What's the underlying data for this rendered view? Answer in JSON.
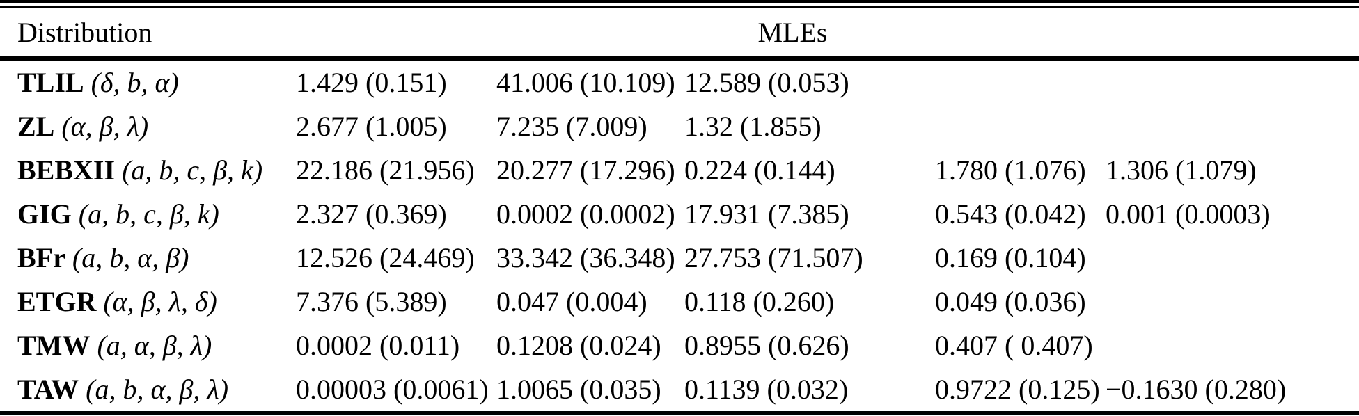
{
  "table": {
    "header": {
      "distribution_label": "Distribution",
      "mles_label": "MLEs"
    },
    "rows": [
      {
        "name": "TLIL",
        "params": "(δ, b, α)",
        "mles": [
          "1.429 (0.151)",
          "41.006 (10.109)",
          "12.589 (0.053)",
          "",
          ""
        ]
      },
      {
        "name": "ZL",
        "params": "(α, β, λ)",
        "mles": [
          "2.677 (1.005)",
          "7.235 (7.009)",
          "1.32 (1.855)",
          "",
          ""
        ]
      },
      {
        "name": "BEBXII",
        "params": "(a, b, c, β, k)",
        "mles": [
          "22.186 (21.956)",
          "20.277 (17.296)",
          "0.224 (0.144)",
          "1.780 (1.076)",
          "1.306 (1.079)"
        ]
      },
      {
        "name": "GIG",
        "params": "(a, b, c, β, k)",
        "mles": [
          "2.327 (0.369)",
          "0.0002 (0.0002)",
          "17.931 (7.385)",
          "0.543 (0.042)",
          "0.001 (0.0003)"
        ]
      },
      {
        "name": "BFr",
        "params": "(a, b, α, β)",
        "mles": [
          "12.526 (24.469)",
          "33.342 (36.348)",
          "27.753 (71.507)",
          "0.169 (0.104)",
          ""
        ]
      },
      {
        "name": "ETGR",
        "params": "(α, β, λ, δ)",
        "mles": [
          "7.376 (5.389)",
          "0.047 (0.004)",
          "0.118 (0.260)",
          "0.049 (0.036)",
          ""
        ]
      },
      {
        "name": "TMW",
        "params": "(a, α, β, λ)",
        "mles": [
          "0.0002 (0.011)",
          "0.1208 (0.024)",
          "0.8955 (0.626)",
          "0.407 ( 0.407)",
          ""
        ]
      },
      {
        "name": "TAW",
        "params": "(a, b, α, β, λ)",
        "mles": [
          "0.00003 (0.0061)",
          "1.0065 (0.035)",
          "0.1139 (0.032)",
          "0.9722 (0.125)",
          "−0.1630 (0.280)"
        ]
      }
    ]
  }
}
